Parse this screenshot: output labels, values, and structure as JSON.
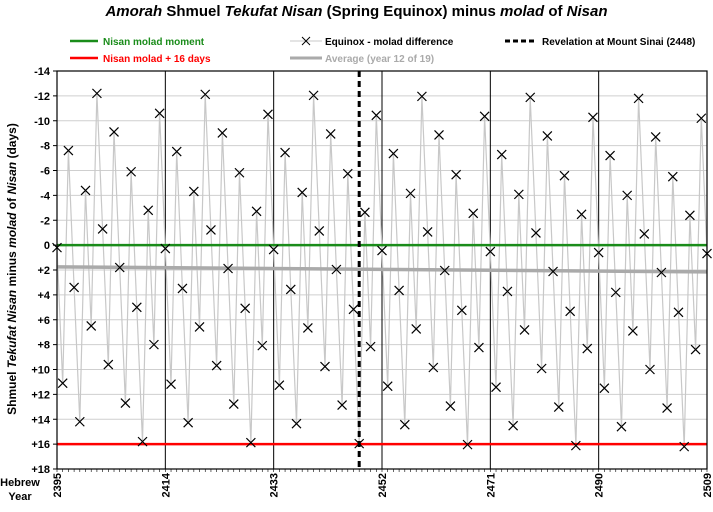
{
  "title": {
    "part1": "Amorah",
    "part2": " Shmuel ",
    "part3": "Tekufat Nisan",
    "part4": " (Spring Equinox) minus ",
    "part5": "molad",
    "part6": " of ",
    "part7": "Nisan"
  },
  "ylabel": {
    "part1": "Shmuel ",
    "part2": "Tekufat Nisan",
    "part3": " minus ",
    "part4": "molad",
    "part5": " of ",
    "part6": "Nisan",
    "part7": " (days)"
  },
  "xlabel_line1": "Hebrew",
  "xlabel_line2": "Year",
  "legend": {
    "green": "Nisan molad moment",
    "red": "Nisan molad + 16 days",
    "series": "Equinox - molad difference",
    "average": "Average (year 12 of 19)",
    "sinai": "Revelation at Mount Sinai (2448)"
  },
  "colors": {
    "green": "#1a8c1a",
    "red": "#ff0000",
    "series_line": "#c8c8c8",
    "average": "#aaaaaa",
    "marker": "#000000",
    "grid": "#cfcfcf"
  },
  "chart_data": {
    "type": "line",
    "title": "Amorah Shmuel Tekufat Nisan (Spring Equinox) minus molad of Nisan",
    "xlabel": "Hebrew Year",
    "ylabel": "Shmuel Tekufat Nisan minus molad of Nisan (days)",
    "xlim": [
      2395,
      2509
    ],
    "ylim": [
      18,
      -14
    ],
    "y_axis_inverted": true,
    "x_ticks": [
      2395,
      2414,
      2433,
      2452,
      2471,
      2490,
      2509
    ],
    "y_ticks": [
      -14,
      -12,
      -10,
      -8,
      -6,
      -4,
      -2,
      0,
      2,
      4,
      6,
      8,
      10,
      12,
      14,
      16,
      18
    ],
    "y_tick_labels": [
      "-14",
      "-12",
      "-10",
      "-8",
      "-6",
      "-4",
      "-2",
      "0",
      "+2",
      "+4",
      "+6",
      "+8",
      "+10",
      "+12",
      "+14",
      "+16",
      "+18"
    ],
    "grid": "horizontal lines at each y tick, vertical lines at each x tick",
    "legend_position": "top",
    "cycle_values": [
      0.2,
      11.1,
      -7.6,
      3.4,
      14.2,
      -4.4,
      6.5,
      -12.2,
      -1.3,
      9.6,
      -9.1,
      1.8,
      12.7,
      -5.9,
      5.0,
      15.8,
      -2.8,
      8.0,
      -10.6
    ],
    "cycle_drift_per_cycle": 0.08,
    "series": [
      {
        "name": "Equinox - molad difference",
        "x_start": 2395,
        "x_end": 2509,
        "description": "one point per Hebrew year; each year's value = cycle_values[(year-2395) mod 19] + drift*(floor((year-2395)/19))",
        "marker": "x"
      },
      {
        "name": "Average (year 12 of 19)",
        "x": [
          2395,
          2509
        ],
        "y": [
          1.75,
          2.15
        ]
      },
      {
        "name": "Nisan molad moment",
        "y_constant": 0
      },
      {
        "name": "Nisan molad + 16 days",
        "y_constant": 16
      }
    ],
    "vertical_marker": {
      "name": "Revelation at Mount Sinai (2448)",
      "x": 2448
    }
  }
}
